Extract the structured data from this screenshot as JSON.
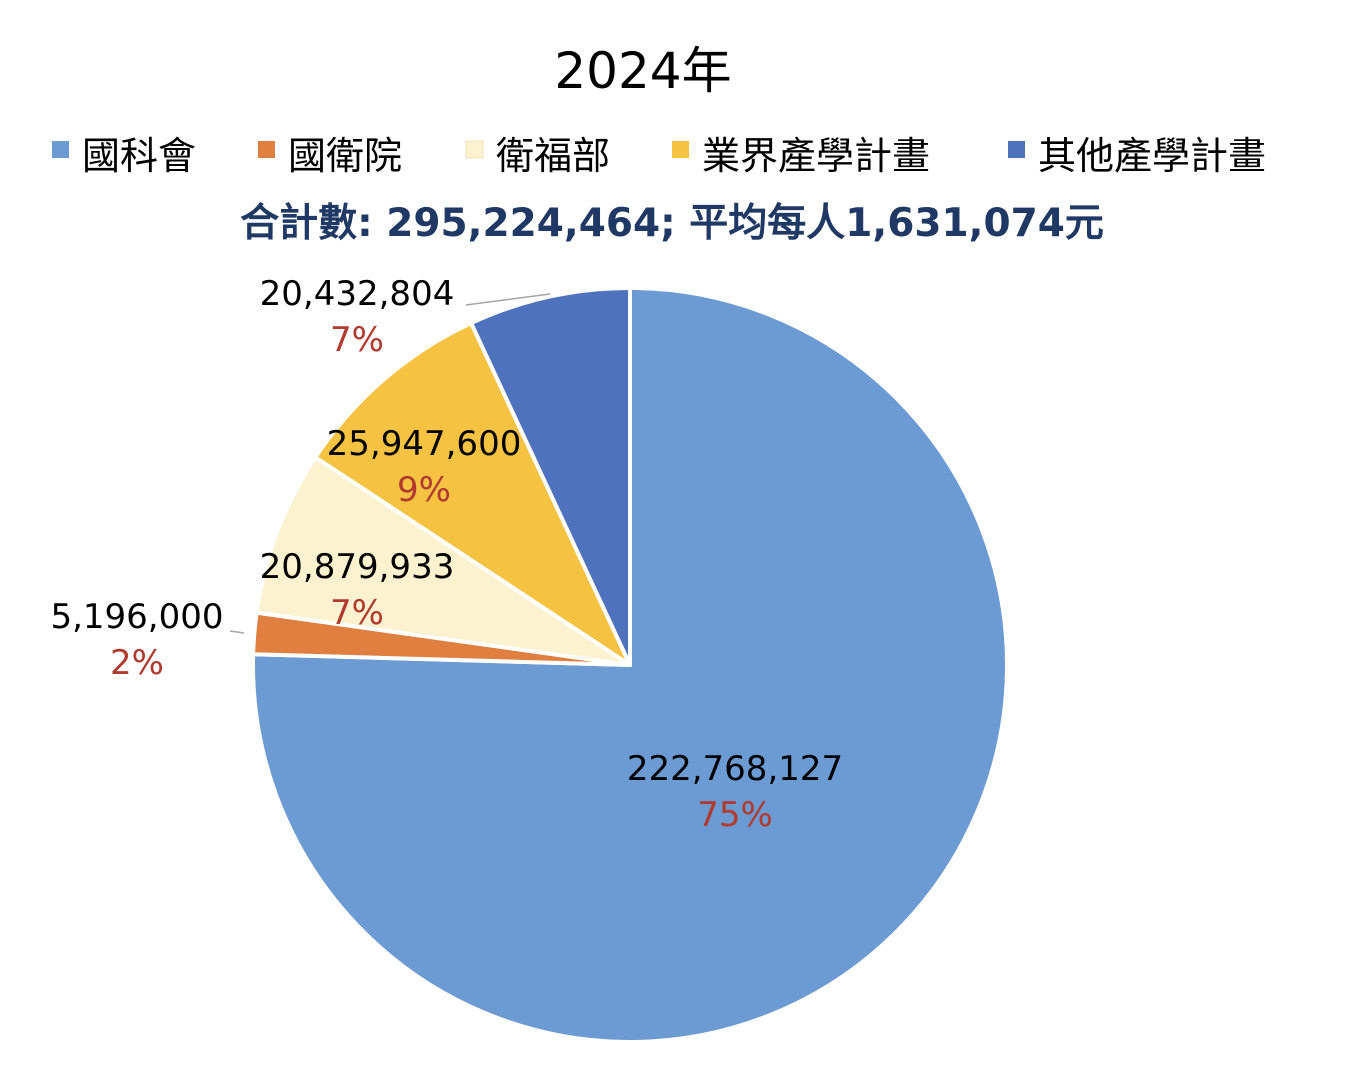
{
  "chart_data": {
    "type": "pie",
    "title": "2024年",
    "subtitle": "合計數: 295,224,464; 平均每人1,631,074元",
    "legend_position": "top",
    "slices": [
      {
        "name": "國科會",
        "value": 222768127,
        "value_label": "222,768,127",
        "percent_label": "75%",
        "color": "#6b9bd2"
      },
      {
        "name": "國衛院",
        "value": 5196000,
        "value_label": "5,196,000",
        "percent_label": "2%",
        "color": "#e07f3f"
      },
      {
        "name": "衛福部",
        "value": 20879933,
        "value_label": "20,879,933",
        "percent_label": "7%",
        "color": "#fdf2cf"
      },
      {
        "name": "業界產學計畫",
        "value": 25947600,
        "value_label": "25,947,600",
        "percent_label": "9%",
        "color": "#f5c242"
      },
      {
        "name": "其他產學計畫",
        "value": 20432804,
        "value_label": "20,432,804",
        "percent_label": "7%",
        "color": "#4e72bd"
      }
    ],
    "start_angle_deg": 0,
    "direction": "clockwise"
  }
}
